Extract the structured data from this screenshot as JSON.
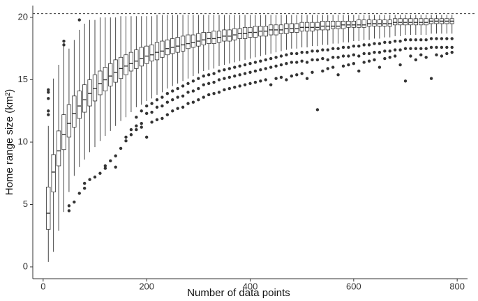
{
  "chart_data": {
    "type": "box",
    "x_label": "Number of data points",
    "y_label": "Home range size (km²)",
    "xlim": [
      -20,
      820
    ],
    "ylim": [
      -0.95,
      20.95
    ],
    "xticks": [
      0,
      200,
      400,
      600,
      800
    ],
    "yticks": [
      0,
      5,
      10,
      15,
      20
    ],
    "reference_line": 20.3,
    "x": [
      10,
      20,
      30,
      40,
      50,
      60,
      70,
      80,
      90,
      100,
      110,
      120,
      130,
      140,
      150,
      160,
      170,
      180,
      190,
      200,
      210,
      220,
      230,
      240,
      250,
      260,
      270,
      280,
      290,
      300,
      310,
      320,
      330,
      340,
      350,
      360,
      370,
      380,
      390,
      400,
      410,
      420,
      430,
      440,
      450,
      460,
      470,
      480,
      490,
      500,
      510,
      520,
      530,
      540,
      550,
      560,
      570,
      580,
      590,
      600,
      610,
      620,
      630,
      640,
      650,
      660,
      670,
      680,
      690,
      700,
      710,
      720,
      730,
      740,
      750,
      760,
      770,
      780,
      790
    ],
    "whislo": [
      0.4,
      1.2,
      2.9,
      4.4,
      6.0,
      7.3,
      8.0,
      8.6,
      9.2,
      9.6,
      10.1,
      10.5,
      10.9,
      11.3,
      11.7,
      12.0,
      12.4,
      12.8,
      13.0,
      13.3,
      13.5,
      13.8,
      14.0,
      14.3,
      14.5,
      14.7,
      14.9,
      15.1,
      15.3,
      15.5,
      15.7,
      15.8,
      15.9,
      16.1,
      16.2,
      16.3,
      16.4,
      16.5,
      16.6,
      16.7,
      16.8,
      16.9,
      17.0,
      17.1,
      17.2,
      17.3,
      17.4,
      17.5,
      17.5,
      17.6,
      17.6,
      17.7,
      17.7,
      17.8,
      17.8,
      17.9,
      17.9,
      18.0,
      18.0,
      18.1,
      18.1,
      18.2,
      18.2,
      18.3,
      18.3,
      18.4,
      18.4,
      18.5,
      18.5,
      18.6,
      18.6,
      18.6,
      18.6,
      18.6,
      18.7,
      18.7,
      18.7,
      18.7,
      18.7
    ],
    "q1": [
      3.0,
      6.0,
      8.1,
      9.4,
      10.4,
      11.2,
      11.9,
      12.4,
      12.9,
      13.3,
      13.8,
      14.1,
      14.5,
      14.8,
      15.1,
      15.4,
      15.7,
      15.9,
      16.1,
      16.3,
      16.5,
      16.6,
      16.8,
      17.0,
      17.1,
      17.2,
      17.3,
      17.5,
      17.6,
      17.7,
      17.8,
      17.9,
      17.9,
      18.0,
      18.1,
      18.1,
      18.2,
      18.3,
      18.3,
      18.4,
      18.4,
      18.5,
      18.5,
      18.6,
      18.6,
      18.7,
      18.7,
      18.8,
      18.8,
      18.9,
      18.9,
      18.9,
      19.0,
      19.0,
      19.0,
      19.1,
      19.1,
      19.1,
      19.2,
      19.2,
      19.2,
      19.2,
      19.3,
      19.3,
      19.3,
      19.3,
      19.3,
      19.4,
      19.4,
      19.4,
      19.4,
      19.4,
      19.4,
      19.4,
      19.5,
      19.5,
      19.5,
      19.5,
      19.5
    ],
    "median": [
      4.3,
      7.6,
      9.3,
      10.6,
      11.5,
      12.3,
      12.9,
      13.4,
      13.9,
      14.3,
      14.7,
      15.0,
      15.3,
      15.6,
      15.9,
      16.1,
      16.3,
      16.5,
      16.7,
      16.9,
      17.0,
      17.2,
      17.3,
      17.5,
      17.6,
      17.7,
      17.8,
      17.9,
      18.0,
      18.1,
      18.2,
      18.3,
      18.3,
      18.4,
      18.5,
      18.5,
      18.6,
      18.7,
      18.7,
      18.8,
      18.8,
      18.9,
      18.9,
      19.0,
      19.0,
      19.0,
      19.1,
      19.1,
      19.1,
      19.2,
      19.2,
      19.2,
      19.2,
      19.3,
      19.3,
      19.3,
      19.3,
      19.4,
      19.4,
      19.4,
      19.4,
      19.4,
      19.5,
      19.5,
      19.5,
      19.5,
      19.5,
      19.6,
      19.6,
      19.6,
      19.6,
      19.6,
      19.6,
      19.6,
      19.7,
      19.7,
      19.7,
      19.7,
      19.7
    ],
    "q3": [
      6.4,
      9.0,
      10.9,
      12.2,
      13.0,
      13.7,
      14.1,
      14.6,
      15.0,
      15.4,
      15.7,
      16.0,
      16.3,
      16.6,
      16.8,
      17.0,
      17.2,
      17.4,
      17.6,
      17.7,
      17.8,
      18.0,
      18.1,
      18.2,
      18.3,
      18.4,
      18.5,
      18.6,
      18.6,
      18.7,
      18.8,
      18.8,
      18.9,
      18.9,
      19.0,
      19.0,
      19.1,
      19.1,
      19.2,
      19.2,
      19.3,
      19.3,
      19.3,
      19.4,
      19.4,
      19.4,
      19.5,
      19.5,
      19.5,
      19.6,
      19.6,
      19.6,
      19.6,
      19.7,
      19.7,
      19.7,
      19.7,
      19.7,
      19.7,
      19.7,
      19.8,
      19.8,
      19.8,
      19.8,
      19.8,
      19.8,
      19.8,
      19.9,
      19.9,
      19.9,
      19.9,
      19.9,
      19.9,
      19.9,
      19.9,
      19.9,
      19.9,
      19.9,
      19.9
    ],
    "whishi": [
      11.3,
      15.1,
      16.2,
      17.7,
      17.5,
      18.2,
      19.0,
      19.5,
      19.8,
      19.8,
      20.0,
      20.0,
      20.0,
      20.0,
      20.1,
      20.1,
      20.1,
      20.1,
      20.1,
      20.1,
      20.1,
      20.2,
      20.2,
      20.2,
      20.2,
      20.2,
      20.2,
      20.2,
      20.2,
      20.2,
      20.2,
      20.2,
      20.2,
      20.2,
      20.2,
      20.2,
      20.2,
      20.2,
      20.2,
      20.2,
      20.2,
      20.2,
      20.2,
      20.2,
      20.2,
      20.2,
      20.2,
      20.2,
      20.2,
      20.2,
      20.2,
      20.2,
      20.2,
      20.2,
      20.2,
      20.2,
      20.2,
      20.2,
      20.2,
      20.2,
      20.2,
      20.2,
      20.2,
      20.2,
      20.2,
      20.2,
      20.2,
      20.2,
      20.2,
      20.2,
      20.2,
      20.2,
      20.2,
      20.2,
      20.2,
      20.2,
      20.2,
      20.2,
      20.2
    ],
    "outliers": [
      [
        12.2,
        12.5,
        13.5,
        14.0,
        14.2
      ],
      [],
      [],
      [
        17.8,
        18.1
      ],
      [
        4.5,
        4.9
      ],
      [
        5.2
      ],
      [
        19.8,
        5.9
      ],
      [
        6.3,
        6.7
      ],
      [
        7.0
      ],
      [
        7.2
      ],
      [
        7.5
      ],
      [
        7.9,
        8.1
      ],
      [
        8.5
      ],
      [
        8.0,
        8.9
      ],
      [
        9.5
      ],
      [
        10.1,
        10.4
      ],
      [
        10.6,
        11.0
      ],
      [
        11.0,
        11.3,
        12.0
      ],
      [
        11.2,
        11.5,
        12.5
      ],
      [
        12.9,
        12.3,
        10.4
      ],
      [
        13.1,
        12.4,
        11.6
      ],
      [
        13.4,
        12.8,
        11.8
      ],
      [
        13.6,
        12.9,
        11.9
      ],
      [
        13.9,
        13.2,
        12.2
      ],
      [
        14.1,
        13.4,
        12.5
      ],
      [
        14.3,
        13.6,
        12.7
      ],
      [
        14.5,
        13.7,
        12.8
      ],
      [
        14.7,
        14.0,
        13.1
      ],
      [
        14.9,
        14.1,
        13.2
      ],
      [
        15.1,
        14.3,
        13.4
      ],
      [
        15.3,
        14.6,
        13.6
      ],
      [
        15.4,
        14.7,
        13.8
      ],
      [
        15.5,
        14.8,
        13.9
      ],
      [
        15.7,
        15.0,
        14.0
      ],
      [
        15.8,
        15.1,
        14.2
      ],
      [
        15.9,
        15.2,
        14.3
      ],
      [
        16.0,
        15.3,
        14.4
      ],
      [
        16.1,
        15.4,
        14.5
      ],
      [
        16.2,
        15.5,
        14.6
      ],
      [
        16.3,
        15.6,
        14.7
      ],
      [
        16.4,
        15.7,
        14.8
      ],
      [
        16.5,
        15.8,
        14.9
      ],
      [
        16.6,
        15.9,
        15.0
      ],
      [
        16.7,
        16.0,
        14.6
      ],
      [
        16.8,
        16.1,
        15.1
      ],
      [
        16.9,
        16.2,
        15.2
      ],
      [
        17.0,
        16.3,
        15.0
      ],
      [
        17.1,
        16.4,
        15.3
      ],
      [
        17.1,
        16.4,
        15.4
      ],
      [
        17.2,
        16.5,
        15.5
      ],
      [
        17.2,
        16.4,
        15.1
      ],
      [
        17.3,
        16.6,
        15.6
      ],
      [
        17.3,
        16.6,
        12.6
      ],
      [
        17.4,
        16.7,
        15.7
      ],
      [
        17.4,
        16.6,
        15.9
      ],
      [
        17.5,
        16.8,
        16.0
      ],
      [
        17.5,
        16.8,
        15.4
      ],
      [
        17.6,
        16.9,
        16.1
      ],
      [
        17.6,
        16.9,
        16.2
      ],
      [
        17.7,
        17.0,
        16.3
      ],
      [
        17.7,
        16.9,
        15.7
      ],
      [
        17.8,
        17.1,
        16.4
      ],
      [
        17.8,
        17.1,
        16.5
      ],
      [
        17.9,
        17.2,
        16.6
      ],
      [
        17.9,
        17.2,
        16.0
      ],
      [
        18.0,
        17.3,
        16.7
      ],
      [
        18.0,
        17.3,
        16.8
      ],
      [
        18.1,
        17.4,
        16.9
      ],
      [
        18.1,
        17.4,
        16.2
      ],
      [
        18.2,
        17.5,
        14.9
      ],
      [
        18.2,
        17.5,
        16.9
      ],
      [
        18.2,
        17.5,
        16.6
      ],
      [
        18.2,
        17.5,
        17.0
      ],
      [
        18.2,
        17.5,
        16.8
      ],
      [
        18.3,
        17.6,
        15.1
      ],
      [
        18.3,
        17.6,
        17.0
      ],
      [
        18.3,
        17.6,
        16.9
      ],
      [
        18.3,
        17.6,
        17.1
      ],
      [
        18.3,
        17.6,
        17.2
      ]
    ]
  }
}
